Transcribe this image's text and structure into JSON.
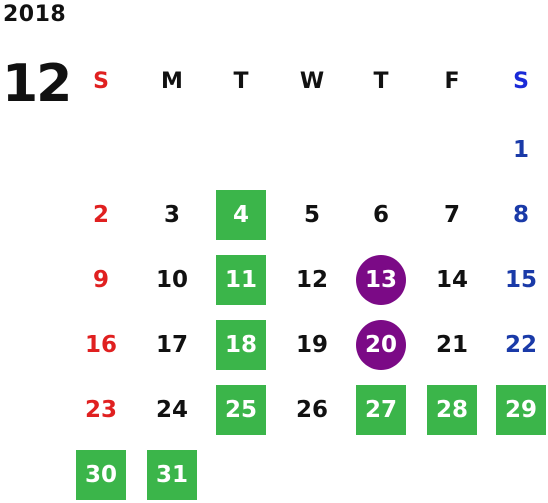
{
  "year": "2018",
  "month": "12",
  "weekdays": [
    "S",
    "M",
    "T",
    "W",
    "T",
    "F",
    "S"
  ],
  "colors": {
    "sunday": "#e02020",
    "saturday": "#1a3aa8",
    "highlight_green": "#3bb54a",
    "highlight_purple": "#7b0a86"
  },
  "days": [
    {
      "d": "1",
      "col": 6,
      "row": 0,
      "style": "none"
    },
    {
      "d": "2",
      "col": 0,
      "row": 1,
      "style": "none"
    },
    {
      "d": "3",
      "col": 1,
      "row": 1,
      "style": "none"
    },
    {
      "d": "4",
      "col": 2,
      "row": 1,
      "style": "green"
    },
    {
      "d": "5",
      "col": 3,
      "row": 1,
      "style": "none"
    },
    {
      "d": "6",
      "col": 4,
      "row": 1,
      "style": "none"
    },
    {
      "d": "7",
      "col": 5,
      "row": 1,
      "style": "none"
    },
    {
      "d": "8",
      "col": 6,
      "row": 1,
      "style": "none"
    },
    {
      "d": "9",
      "col": 0,
      "row": 2,
      "style": "none"
    },
    {
      "d": "10",
      "col": 1,
      "row": 2,
      "style": "none"
    },
    {
      "d": "11",
      "col": 2,
      "row": 2,
      "style": "green"
    },
    {
      "d": "12",
      "col": 3,
      "row": 2,
      "style": "none"
    },
    {
      "d": "13",
      "col": 4,
      "row": 2,
      "style": "purple"
    },
    {
      "d": "14",
      "col": 5,
      "row": 2,
      "style": "none"
    },
    {
      "d": "15",
      "col": 6,
      "row": 2,
      "style": "none"
    },
    {
      "d": "16",
      "col": 0,
      "row": 3,
      "style": "none"
    },
    {
      "d": "17",
      "col": 1,
      "row": 3,
      "style": "none"
    },
    {
      "d": "18",
      "col": 2,
      "row": 3,
      "style": "green"
    },
    {
      "d": "19",
      "col": 3,
      "row": 3,
      "style": "none"
    },
    {
      "d": "20",
      "col": 4,
      "row": 3,
      "style": "purple"
    },
    {
      "d": "21",
      "col": 5,
      "row": 3,
      "style": "none"
    },
    {
      "d": "22",
      "col": 6,
      "row": 3,
      "style": "none"
    },
    {
      "d": "23",
      "col": 0,
      "row": 4,
      "style": "none"
    },
    {
      "d": "24",
      "col": 1,
      "row": 4,
      "style": "none"
    },
    {
      "d": "25",
      "col": 2,
      "row": 4,
      "style": "green"
    },
    {
      "d": "26",
      "col": 3,
      "row": 4,
      "style": "none"
    },
    {
      "d": "27",
      "col": 4,
      "row": 4,
      "style": "green"
    },
    {
      "d": "28",
      "col": 5,
      "row": 4,
      "style": "green"
    },
    {
      "d": "29",
      "col": 6,
      "row": 4,
      "style": "green"
    },
    {
      "d": "30",
      "col": 0,
      "row": 5,
      "style": "green"
    },
    {
      "d": "31",
      "col": 1,
      "row": 5,
      "style": "green"
    }
  ]
}
